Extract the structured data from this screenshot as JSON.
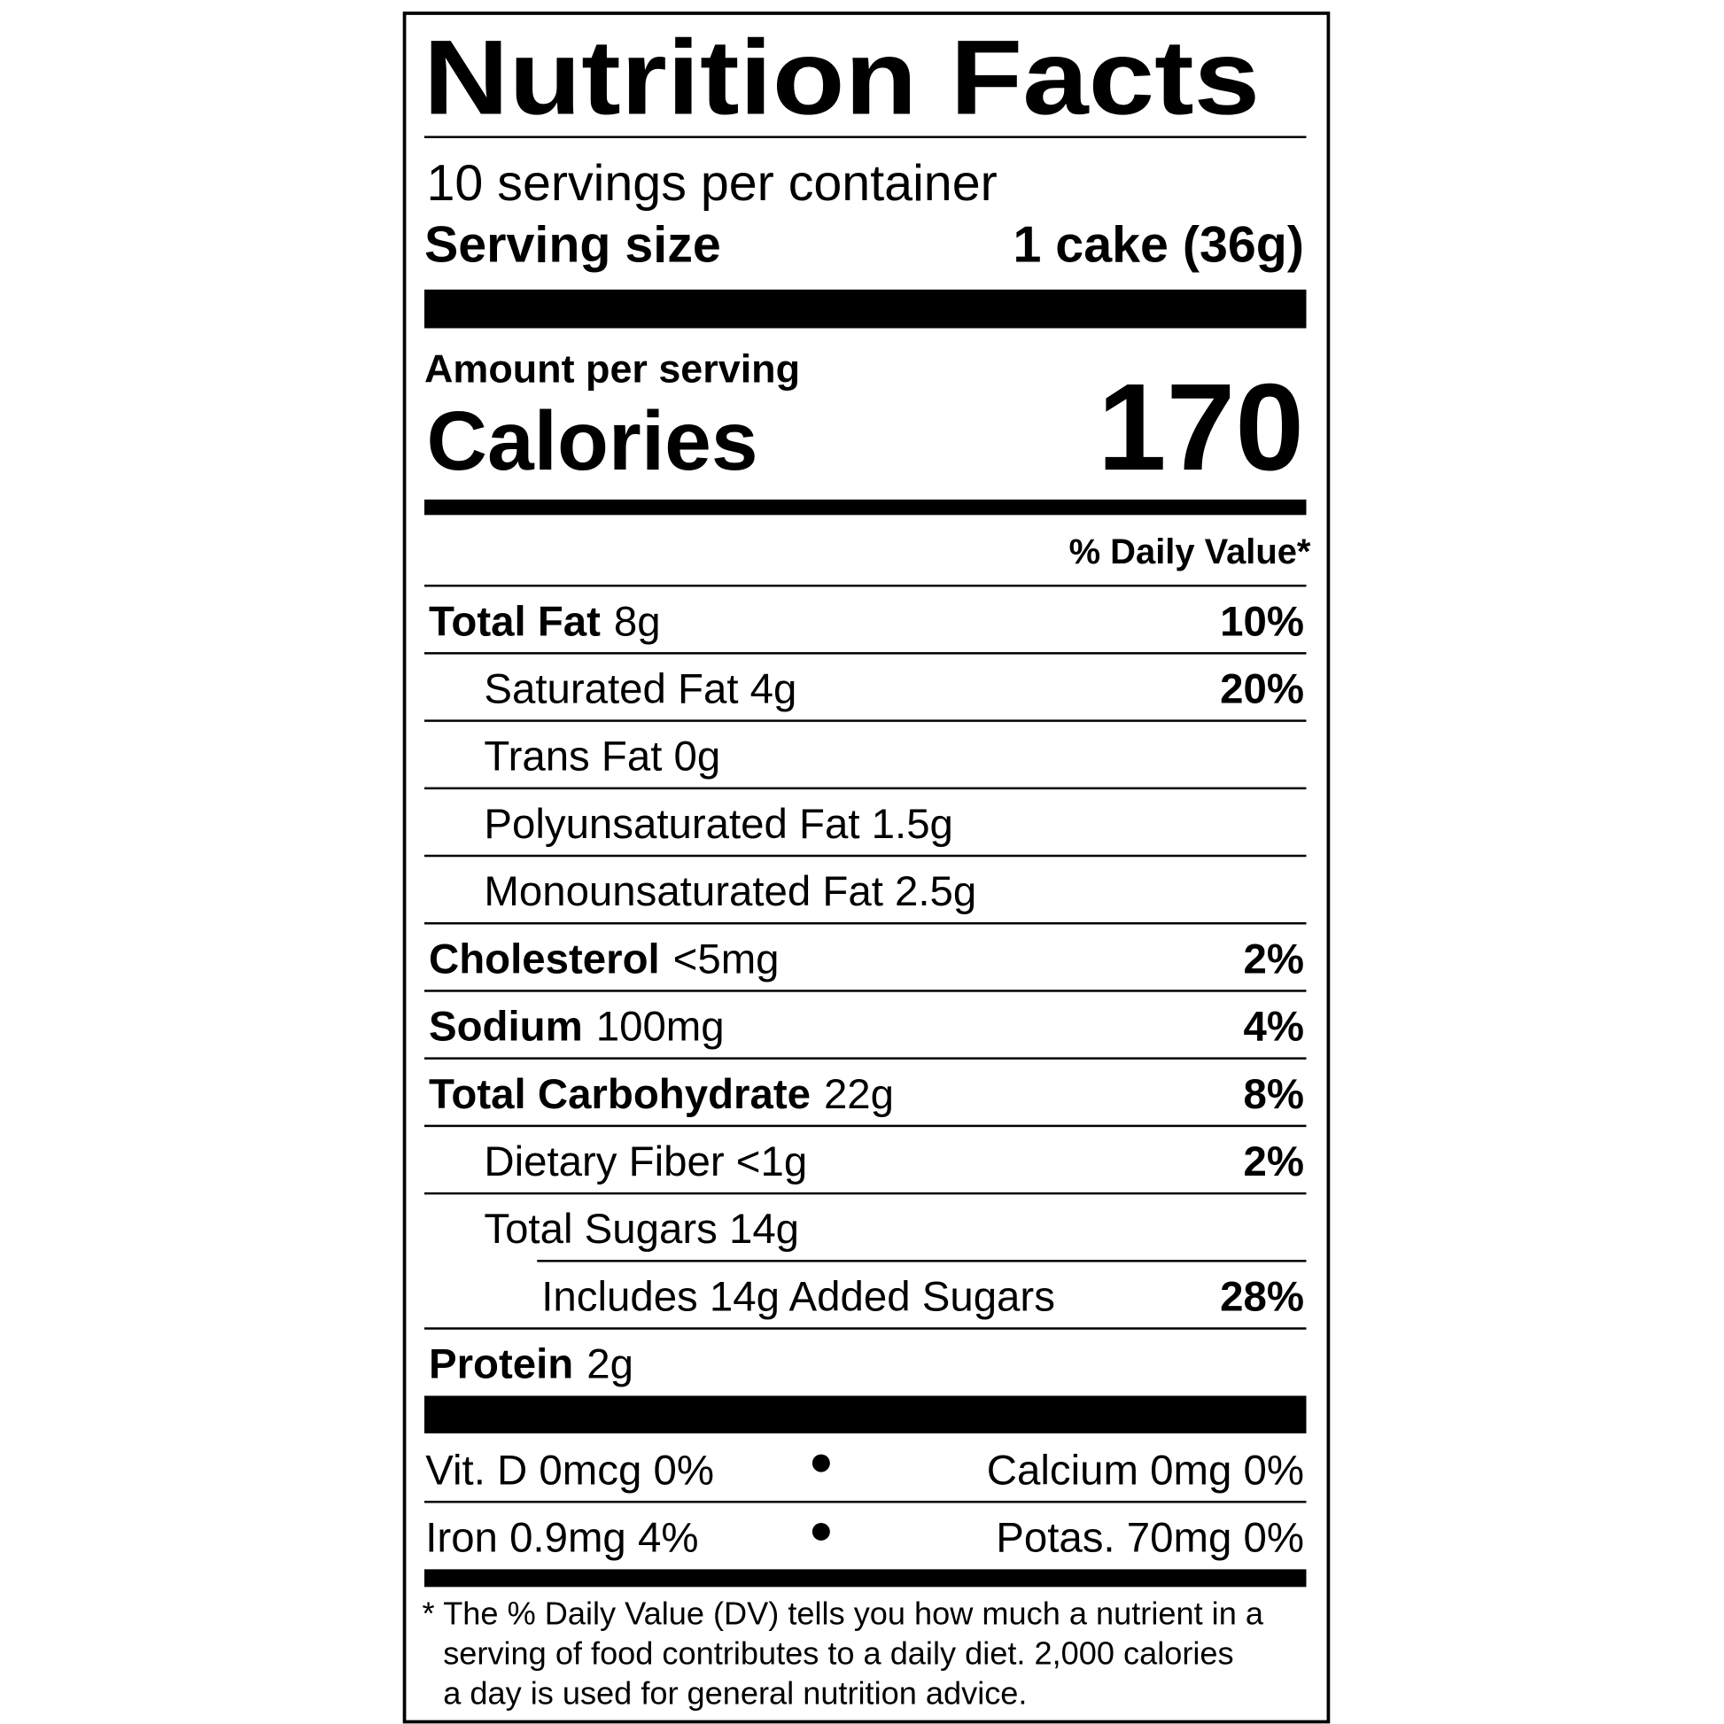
{
  "header": {
    "title": "Nutrition Facts",
    "servings": "10 servings per container",
    "serving_size_label": "Serving size",
    "serving_size": "1 cake (36g)"
  },
  "calories": {
    "amount_per_serving": "Amount per serving",
    "label": "Calories",
    "value": "170"
  },
  "daily_value_header": "% Daily Value*",
  "nutrients": [
    {
      "name": "Total  Fat",
      "amount": "8g",
      "daily_value": "10%"
    },
    {
      "name": "Saturated Fat 4g",
      "daily_value": "20%"
    },
    {
      "name": "Trans Fat 0g"
    },
    {
      "name": "Polyunsaturated Fat 1.5g"
    },
    {
      "name": "Monounsaturated Fat 2.5g"
    },
    {
      "name": "Cholesterol",
      "amount": "<5mg",
      "daily_value": "2%"
    },
    {
      "name": "Sodium",
      "amount": "100mg",
      "daily_value": "4%"
    },
    {
      "name": "Total  Carbohydrate",
      "amount": "22g",
      "daily_value": "8%"
    },
    {
      "name": "Dietary Fiber <1g",
      "daily_value": "2%"
    },
    {
      "name": "Total Sugars 14g"
    },
    {
      "name": "Includes 14g Added Sugars",
      "daily_value": "28%"
    },
    {
      "name": "Protein",
      "amount": "2g"
    }
  ],
  "vitamins": [
    [
      "Vit. D 0mcg 0%",
      "Calcium 0mg 0%"
    ],
    [
      "Iron 0.9mg 4%",
      "Potas. 70mg 0%"
    ]
  ],
  "footnote": {
    "marker": "*",
    "lines": [
      "The % Daily Value (DV) tells you how much a nutrient in a",
      "serving of food contributes to a daily diet. 2,000 calories",
      "a day is used for general nutrition advice."
    ]
  }
}
